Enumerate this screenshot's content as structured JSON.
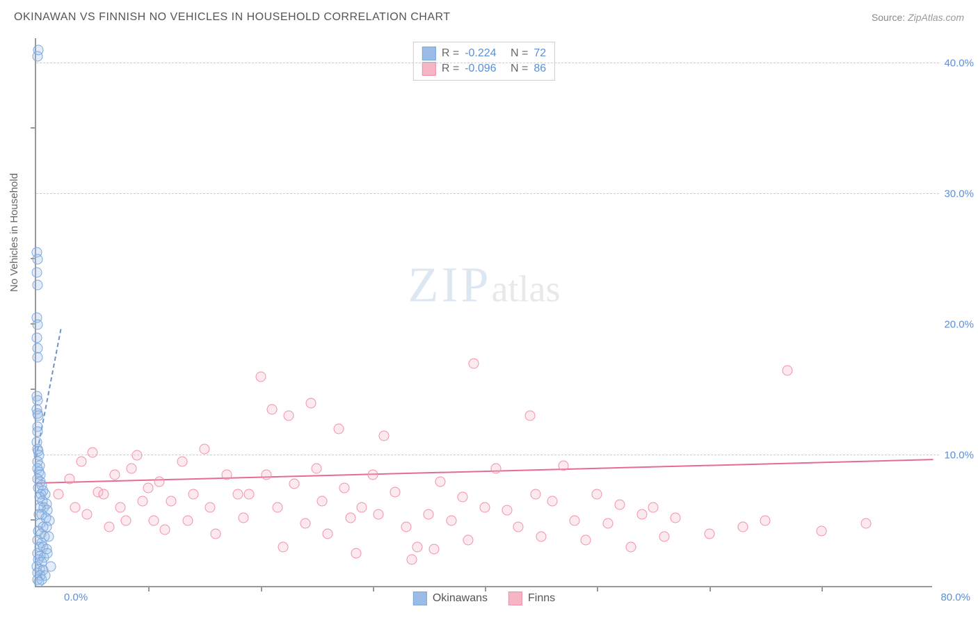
{
  "header": {
    "title": "OKINAWAN VS FINNISH NO VEHICLES IN HOUSEHOLD CORRELATION CHART",
    "source_label": "Source:",
    "source_name": "ZipAtlas.com"
  },
  "watermark": {
    "part1": "ZIP",
    "part2": "atlas"
  },
  "chart": {
    "type": "scatter",
    "ylabel": "No Vehicles in Household",
    "background_color": "#ffffff",
    "grid_color": "#cccccc",
    "axis_color": "#999999",
    "tick_color": "#5b8fd6",
    "xlim": [
      0,
      80
    ],
    "ylim": [
      0,
      42
    ],
    "y_gridlines": [
      10,
      30,
      40
    ],
    "y_tick_labels": [
      {
        "v": 10,
        "t": "10.0%"
      },
      {
        "v": 20,
        "t": "20.0%"
      },
      {
        "v": 30,
        "t": "30.0%"
      },
      {
        "v": 40,
        "t": "40.0%"
      }
    ],
    "x_start_label": "0.0%",
    "x_end_label": "80.0%",
    "x_minor_ticks": [
      10,
      20,
      30,
      40,
      50,
      60,
      70
    ],
    "y_minor_ticks": [
      5,
      15,
      20,
      25,
      35
    ],
    "marker_radius": 7.5,
    "marker_stroke_width": 1.2,
    "marker_fill_opacity": 0.28,
    "series": [
      {
        "name": "Okinawans",
        "color_stroke": "#7aa7dd",
        "color_fill": "#9bbce6",
        "R": "-0.224",
        "N": "72",
        "trend": {
          "x1": 0,
          "y1": 9.8,
          "x2": 2.2,
          "y2": 0,
          "color": "#6a94c8",
          "width": 2,
          "dash": true
        },
        "points": [
          [
            0.1,
            40.5
          ],
          [
            0.2,
            41.0
          ],
          [
            0.05,
            25.5
          ],
          [
            0.1,
            25.0
          ],
          [
            0.08,
            24.0
          ],
          [
            0.12,
            23.0
          ],
          [
            0.05,
            20.5
          ],
          [
            0.1,
            20.0
          ],
          [
            0.08,
            19.0
          ],
          [
            0.1,
            18.2
          ],
          [
            0.12,
            17.5
          ],
          [
            0.05,
            14.5
          ],
          [
            0.1,
            14.2
          ],
          [
            0.08,
            13.5
          ],
          [
            0.15,
            13.2
          ],
          [
            0.2,
            13.0
          ],
          [
            0.1,
            12.2
          ],
          [
            0.15,
            11.8
          ],
          [
            0.05,
            11.0
          ],
          [
            0.1,
            10.5
          ],
          [
            0.18,
            10.3
          ],
          [
            0.22,
            10.0
          ],
          [
            0.1,
            9.5
          ],
          [
            0.3,
            9.2
          ],
          [
            0.15,
            9.0
          ],
          [
            0.25,
            8.7
          ],
          [
            0.4,
            8.5
          ],
          [
            0.1,
            8.2
          ],
          [
            0.35,
            8.0
          ],
          [
            0.5,
            7.7
          ],
          [
            0.2,
            7.5
          ],
          [
            0.6,
            7.3
          ],
          [
            0.45,
            7.0
          ],
          [
            0.8,
            7.0
          ],
          [
            0.3,
            6.8
          ],
          [
            0.55,
            6.5
          ],
          [
            0.9,
            6.3
          ],
          [
            0.4,
            6.0
          ],
          [
            0.7,
            6.0
          ],
          [
            1.0,
            5.8
          ],
          [
            0.25,
            5.5
          ],
          [
            0.5,
            5.5
          ],
          [
            0.85,
            5.2
          ],
          [
            1.2,
            5.0
          ],
          [
            0.35,
            4.8
          ],
          [
            0.6,
            4.5
          ],
          [
            0.95,
            4.5
          ],
          [
            0.2,
            4.2
          ],
          [
            0.45,
            4.0
          ],
          [
            0.75,
            3.8
          ],
          [
            1.1,
            3.8
          ],
          [
            0.15,
            3.5
          ],
          [
            0.5,
            3.3
          ],
          [
            0.3,
            3.0
          ],
          [
            0.65,
            3.0
          ],
          [
            0.95,
            2.8
          ],
          [
            0.1,
            2.5
          ],
          [
            0.4,
            2.3
          ],
          [
            0.7,
            2.2
          ],
          [
            0.2,
            2.0
          ],
          [
            0.5,
            1.8
          ],
          [
            0.08,
            1.5
          ],
          [
            0.3,
            1.3
          ],
          [
            0.6,
            1.2
          ],
          [
            0.15,
            1.0
          ],
          [
            0.4,
            0.8
          ],
          [
            0.1,
            0.5
          ],
          [
            0.25,
            0.3
          ],
          [
            0.5,
            0.5
          ],
          [
            0.8,
            0.8
          ],
          [
            1.3,
            1.5
          ],
          [
            1.0,
            2.5
          ]
        ]
      },
      {
        "name": "Finns",
        "color_stroke": "#f090a8",
        "color_fill": "#f5b5c5",
        "R": "-0.096",
        "N": "86",
        "trend": {
          "x1": 0,
          "y1": 7.8,
          "x2": 80,
          "y2": 6.0,
          "color": "#e66b8f",
          "width": 2.5,
          "dash": false
        },
        "points": [
          [
            2,
            7.0
          ],
          [
            3,
            8.2
          ],
          [
            3.5,
            6.0
          ],
          [
            4,
            9.5
          ],
          [
            4.5,
            5.5
          ],
          [
            5,
            10.2
          ],
          [
            5.5,
            7.2
          ],
          [
            6,
            7.0
          ],
          [
            6.5,
            4.5
          ],
          [
            7,
            8.5
          ],
          [
            7.5,
            6.0
          ],
          [
            8,
            5.0
          ],
          [
            8.5,
            9.0
          ],
          [
            9,
            10.0
          ],
          [
            9.5,
            6.5
          ],
          [
            10,
            7.5
          ],
          [
            10.5,
            5.0
          ],
          [
            11,
            8.0
          ],
          [
            11.5,
            4.3
          ],
          [
            12,
            6.5
          ],
          [
            13,
            9.5
          ],
          [
            13.5,
            5.0
          ],
          [
            14,
            7.0
          ],
          [
            15,
            10.5
          ],
          [
            15.5,
            6.0
          ],
          [
            16,
            4.0
          ],
          [
            17,
            8.5
          ],
          [
            18,
            7.0
          ],
          [
            18.5,
            5.2
          ],
          [
            19,
            7.0
          ],
          [
            20,
            16.0
          ],
          [
            20.5,
            8.5
          ],
          [
            21,
            13.5
          ],
          [
            21.5,
            6.0
          ],
          [
            22,
            3.0
          ],
          [
            22.5,
            13.0
          ],
          [
            23,
            7.8
          ],
          [
            24,
            4.8
          ],
          [
            24.5,
            14.0
          ],
          [
            25,
            9.0
          ],
          [
            25.5,
            6.5
          ],
          [
            26,
            4.0
          ],
          [
            27,
            12.0
          ],
          [
            27.5,
            7.5
          ],
          [
            28,
            5.2
          ],
          [
            28.5,
            2.5
          ],
          [
            29,
            6.0
          ],
          [
            30,
            8.5
          ],
          [
            30.5,
            5.5
          ],
          [
            31,
            11.5
          ],
          [
            32,
            7.2
          ],
          [
            33,
            4.5
          ],
          [
            33.5,
            2.0
          ],
          [
            34,
            3.0
          ],
          [
            35,
            5.5
          ],
          [
            35.5,
            2.8
          ],
          [
            36,
            8.0
          ],
          [
            37,
            5.0
          ],
          [
            38,
            6.8
          ],
          [
            38.5,
            3.5
          ],
          [
            39,
            17.0
          ],
          [
            40,
            6.0
          ],
          [
            41,
            9.0
          ],
          [
            42,
            5.8
          ],
          [
            43,
            4.5
          ],
          [
            44,
            13.0
          ],
          [
            44.5,
            7.0
          ],
          [
            45,
            3.8
          ],
          [
            46,
            6.5
          ],
          [
            47,
            9.2
          ],
          [
            48,
            5.0
          ],
          [
            49,
            3.5
          ],
          [
            50,
            7.0
          ],
          [
            51,
            4.8
          ],
          [
            52,
            6.2
          ],
          [
            53,
            3.0
          ],
          [
            54,
            5.5
          ],
          [
            55,
            6.0
          ],
          [
            56,
            3.8
          ],
          [
            57,
            5.2
          ],
          [
            60,
            4.0
          ],
          [
            63,
            4.5
          ],
          [
            65,
            5.0
          ],
          [
            67,
            16.5
          ],
          [
            70,
            4.2
          ],
          [
            74,
            4.8
          ]
        ]
      }
    ]
  },
  "legend": {
    "s1": "Okinawans",
    "s2": "Finns"
  },
  "stats_labels": {
    "R": "R =",
    "N": "N ="
  }
}
